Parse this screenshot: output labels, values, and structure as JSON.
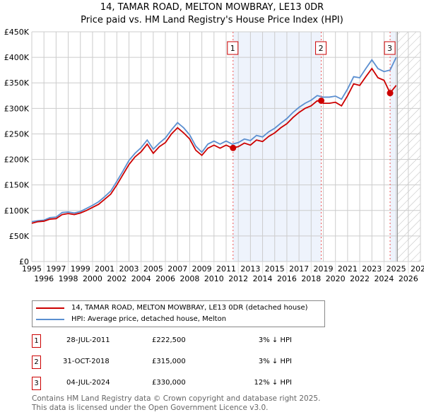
{
  "title": "14, TAMAR ROAD, MELTON MOWBRAY, LE13 0DR",
  "subtitle": "Price paid vs. HM Land Registry's House Price Index (HPI)",
  "chart_data": {
    "type": "line",
    "title": "14, TAMAR ROAD, MELTON MOWBRAY, LE13 0DR — Price paid vs. HM Land Registry's House Price Index (HPI)",
    "xlim": [
      1995,
      2027
    ],
    "ylim": [
      0,
      450000
    ],
    "xticks": [
      "1995",
      "1996",
      "1997",
      "1998",
      "1999",
      "2000",
      "2001",
      "2002",
      "2003",
      "2004",
      "2005",
      "2006",
      "2007",
      "2008",
      "2009",
      "2010",
      "2011",
      "2012",
      "2013",
      "2014",
      "2015",
      "2016",
      "2017",
      "2018",
      "2019",
      "2020",
      "2021",
      "2022",
      "2023",
      "2024",
      "2025",
      "2026",
      "2027"
    ],
    "yticks": [
      "£0",
      "£50K",
      "£100K",
      "£150K",
      "£200K",
      "£250K",
      "£300K",
      "£350K",
      "£400K",
      "£450K"
    ],
    "grid": true,
    "x": [
      1995,
      1995.5,
      1996,
      1996.5,
      1997,
      1997.5,
      1998,
      1998.5,
      1999,
      1999.5,
      2000,
      2000.5,
      2001,
      2001.5,
      2002,
      2002.5,
      2003,
      2003.5,
      2004,
      2004.5,
      2005,
      2005.5,
      2006,
      2006.5,
      2007,
      2007.5,
      2008,
      2008.5,
      2009,
      2009.5,
      2010,
      2010.5,
      2011,
      2011.5,
      2012,
      2012.5,
      2013,
      2013.5,
      2014,
      2014.5,
      2015,
      2015.5,
      2016,
      2016.5,
      2017,
      2017.5,
      2018,
      2018.5,
      2019,
      2019.5,
      2020,
      2020.5,
      2021,
      2021.5,
      2022,
      2022.5,
      2023,
      2023.5,
      2024,
      2024.5,
      2025
    ],
    "series": [
      {
        "name": "14, TAMAR ROAD, MELTON MOWBRAY, LE13 0DR (detached house)",
        "color": "#cc0000",
        "values": [
          75000,
          78000,
          79000,
          83000,
          84000,
          92000,
          94000,
          92000,
          95000,
          100000,
          106000,
          112000,
          122000,
          132000,
          150000,
          170000,
          190000,
          205000,
          215000,
          230000,
          212000,
          225000,
          233000,
          250000,
          262000,
          252000,
          240000,
          218000,
          208000,
          222000,
          228000,
          222000,
          228000,
          222500,
          225000,
          232000,
          228000,
          238000,
          235000,
          245000,
          252000,
          262000,
          270000,
          282000,
          292000,
          300000,
          305000,
          315000,
          310000,
          310000,
          312000,
          305000,
          325000,
          348000,
          345000,
          362000,
          378000,
          360000,
          355000,
          330000,
          345000
        ]
      },
      {
        "name": "HPI: Average price, detached house, Melton",
        "color": "#5b8fd0",
        "values": [
          78000,
          80000,
          81000,
          86000,
          87000,
          96000,
          97000,
          95000,
          98000,
          104000,
          110000,
          117000,
          127000,
          138000,
          157000,
          177000,
          198000,
          212000,
          223000,
          238000,
          220000,
          232000,
          242000,
          258000,
          272000,
          262000,
          248000,
          226000,
          214000,
          230000,
          236000,
          230000,
          236000,
          230000,
          233000,
          240000,
          237000,
          247000,
          244000,
          254000,
          261000,
          271000,
          280000,
          292000,
          302000,
          310000,
          316000,
          325000,
          322000,
          322000,
          324000,
          318000,
          338000,
          362000,
          360000,
          378000,
          395000,
          378000,
          372000,
          375000,
          400000
        ]
      }
    ],
    "annotations": [
      {
        "label": "1",
        "x": 2011.57,
        "y": 222500
      },
      {
        "label": "2",
        "x": 2018.83,
        "y": 315000
      },
      {
        "label": "3",
        "x": 2024.5,
        "y": 330000
      }
    ]
  },
  "legend": {
    "red": "14, TAMAR ROAD, MELTON MOWBRAY, LE13 0DR (detached house)",
    "blue": "HPI: Average price, detached house, Melton"
  },
  "transactions": [
    {
      "num": "1",
      "date": "28-JUL-2011",
      "price": "£222,500",
      "hpi": "3% ↓ HPI"
    },
    {
      "num": "2",
      "date": "31-OCT-2018",
      "price": "£315,000",
      "hpi": "3% ↓ HPI"
    },
    {
      "num": "3",
      "date": "04-JUL-2024",
      "price": "£330,000",
      "hpi": "12% ↓ HPI"
    }
  ],
  "footer": [
    "Contains HM Land Registry data © Crown copyright and database right 2025.",
    "This data is licensed under the Open Government Licence v3.0."
  ]
}
